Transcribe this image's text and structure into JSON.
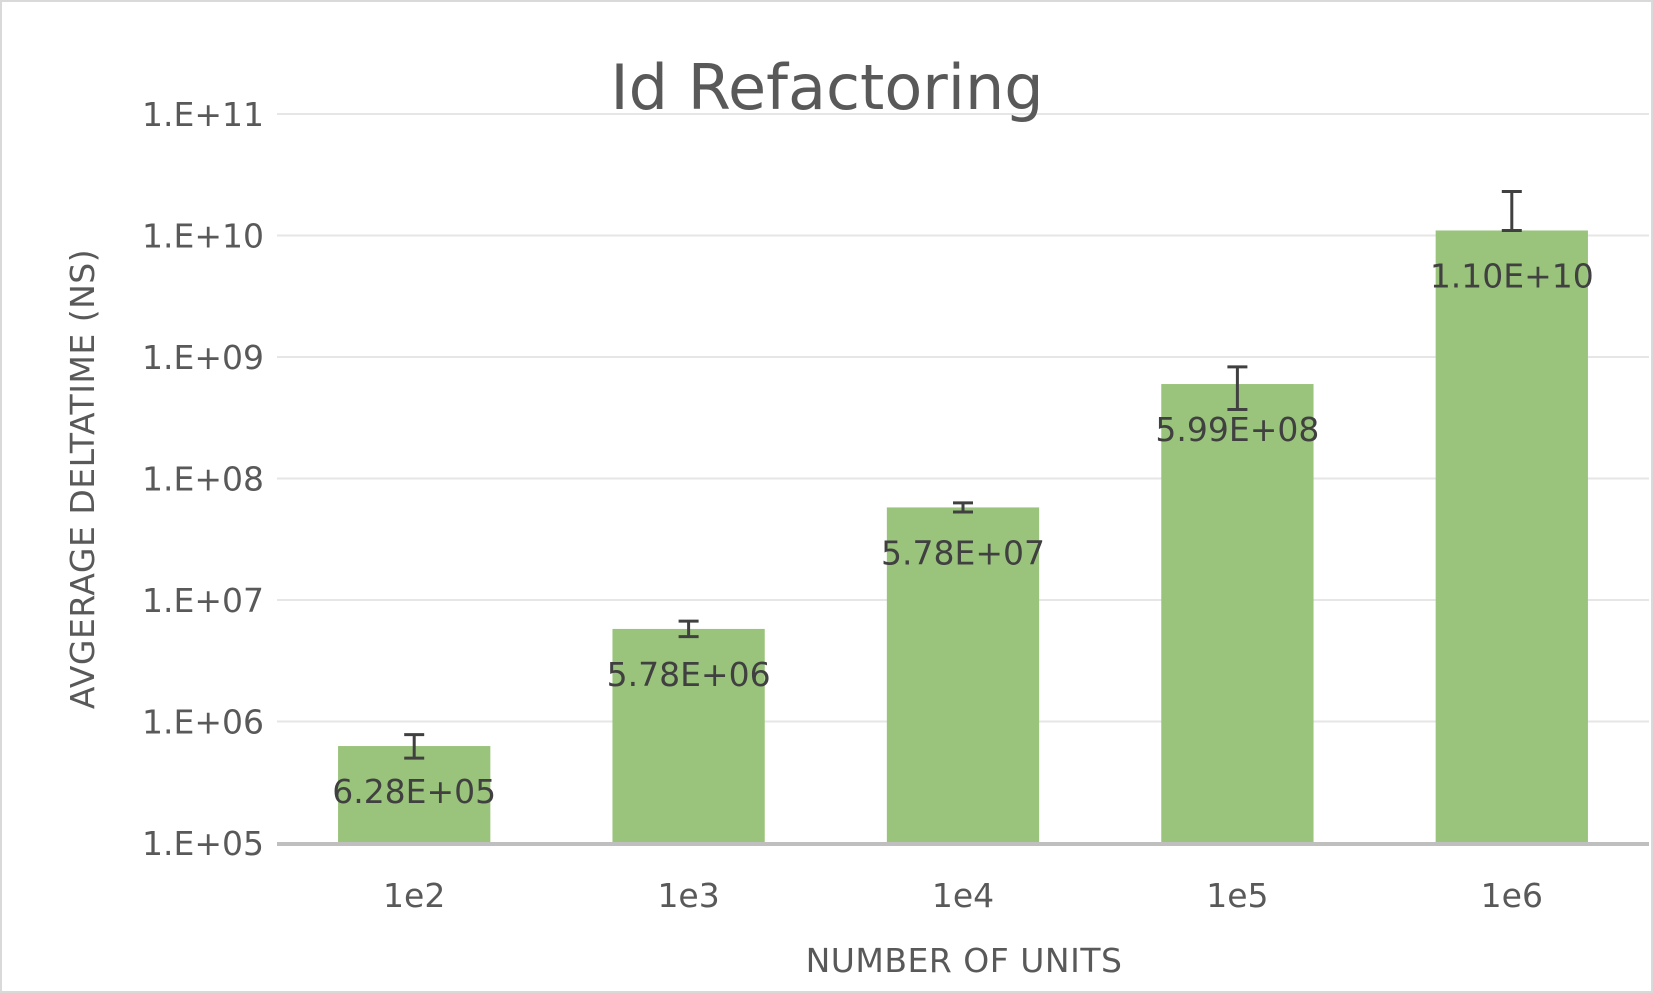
{
  "chart_data": {
    "type": "bar",
    "title": "Id Refactoring",
    "xlabel": "NUMBER OF UNITS",
    "ylabel": "AVGERAGE DELTATIME (NS)",
    "categories": [
      "1e2",
      "1e3",
      "1e4",
      "1e5",
      "1e6"
    ],
    "values": [
      628000,
      5780000,
      57800000,
      599000000,
      11000000000
    ],
    "data_labels": [
      "6.28E+05",
      "5.78E+06",
      "5.78E+07",
      "5.99E+08",
      "1.10E+10"
    ],
    "error_bars": [
      {
        "low": 500000,
        "high": 780000
      },
      {
        "low": 5000000,
        "high": 6700000
      },
      {
        "low": 53000000,
        "high": 63000000
      },
      {
        "low": 370000000,
        "high": 830000000
      },
      {
        "low": 11000000000,
        "high": 23000000000
      }
    ],
    "y_scale": "log",
    "ylim": [
      100000,
      100000000000
    ],
    "y_ticks": [
      {
        "value": 100000,
        "label": "1.E+05"
      },
      {
        "value": 1000000,
        "label": "1.E+06"
      },
      {
        "value": 10000000,
        "label": "1.E+07"
      },
      {
        "value": 100000000,
        "label": "1.E+08"
      },
      {
        "value": 1000000000,
        "label": "1.E+09"
      },
      {
        "value": 10000000000,
        "label": "1.E+10"
      },
      {
        "value": 100000000000,
        "label": "1.E+11"
      }
    ],
    "grid": true,
    "legend": "none",
    "colors": {
      "bar": "#9ac47c",
      "error_bar": "#404040",
      "grid": "#e6e6e6",
      "axis": "#bfbfbf",
      "text": "#595959",
      "label": "#404040"
    }
  }
}
